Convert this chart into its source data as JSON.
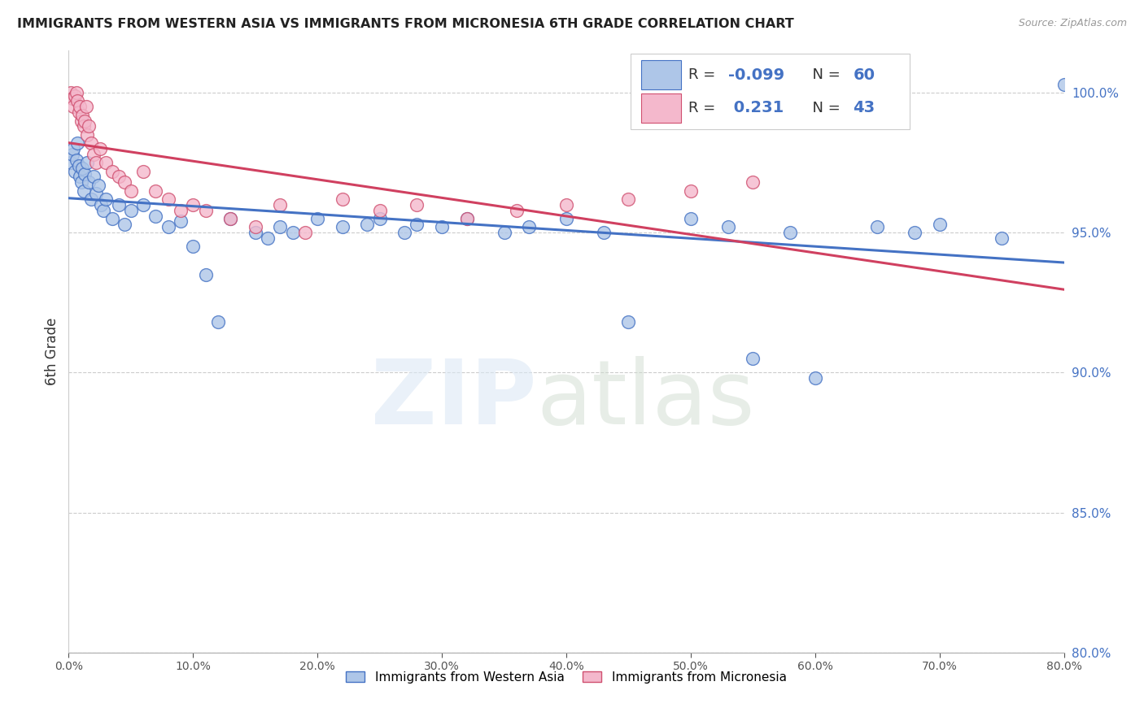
{
  "title": "IMMIGRANTS FROM WESTERN ASIA VS IMMIGRANTS FROM MICRONESIA 6TH GRADE CORRELATION CHART",
  "source": "Source: ZipAtlas.com",
  "ylabel_left": "6th Grade",
  "legend_label1": "Immigrants from Western Asia",
  "legend_label2": "Immigrants from Micronesia",
  "R1": -0.099,
  "N1": 60,
  "R2": 0.231,
  "N2": 43,
  "color1_fill": "#aec6e8",
  "color1_edge": "#4472c4",
  "color2_fill": "#f4b8cc",
  "color2_edge": "#d05070",
  "color1_line": "#4472c4",
  "color2_line": "#d04060",
  "xlim": [
    0.0,
    80.0
  ],
  "ylim": [
    80.0,
    101.5
  ],
  "yticks_right": [
    80.0,
    85.0,
    90.0,
    95.0,
    100.0
  ],
  "xticks": [
    0.0,
    10.0,
    20.0,
    30.0,
    40.0,
    50.0,
    60.0,
    70.0,
    80.0
  ],
  "blue_scatter_x": [
    0.2,
    0.3,
    0.4,
    0.5,
    0.6,
    0.7,
    0.8,
    0.9,
    1.0,
    1.1,
    1.2,
    1.3,
    1.5,
    1.6,
    1.8,
    2.0,
    2.2,
    2.4,
    2.6,
    2.8,
    3.0,
    3.5,
    4.0,
    4.5,
    5.0,
    6.0,
    7.0,
    8.0,
    9.0,
    10.0,
    11.0,
    12.0,
    13.0,
    15.0,
    16.0,
    17.0,
    18.0,
    20.0,
    22.0,
    24.0,
    25.0,
    27.0,
    28.0,
    30.0,
    32.0,
    35.0,
    37.0,
    40.0,
    43.0,
    45.0,
    50.0,
    53.0,
    55.0,
    58.0,
    60.0,
    65.0,
    68.0,
    70.0,
    75.0,
    80.0
  ],
  "blue_scatter_y": [
    97.5,
    97.8,
    98.0,
    97.2,
    97.6,
    98.2,
    97.4,
    97.0,
    96.8,
    97.3,
    96.5,
    97.1,
    97.5,
    96.8,
    96.2,
    97.0,
    96.4,
    96.7,
    96.0,
    95.8,
    96.2,
    95.5,
    96.0,
    95.3,
    95.8,
    96.0,
    95.6,
    95.2,
    95.4,
    94.5,
    93.5,
    91.8,
    95.5,
    95.0,
    94.8,
    95.2,
    95.0,
    95.5,
    95.2,
    95.3,
    95.5,
    95.0,
    95.3,
    95.2,
    95.5,
    95.0,
    95.2,
    95.5,
    95.0,
    91.8,
    95.5,
    95.2,
    90.5,
    95.0,
    89.8,
    95.2,
    95.0,
    95.3,
    94.8,
    100.3
  ],
  "pink_scatter_x": [
    0.2,
    0.3,
    0.4,
    0.5,
    0.6,
    0.7,
    0.8,
    0.9,
    1.0,
    1.1,
    1.2,
    1.3,
    1.4,
    1.5,
    1.6,
    1.8,
    2.0,
    2.2,
    2.5,
    3.0,
    3.5,
    4.0,
    4.5,
    5.0,
    6.0,
    7.0,
    8.0,
    9.0,
    10.0,
    11.0,
    13.0,
    15.0,
    17.0,
    19.0,
    22.0,
    25.0,
    28.0,
    32.0,
    36.0,
    40.0,
    45.0,
    50.0,
    55.0
  ],
  "pink_scatter_y": [
    100.0,
    99.8,
    99.5,
    99.9,
    100.0,
    99.7,
    99.3,
    99.5,
    99.0,
    99.2,
    98.8,
    99.0,
    99.5,
    98.5,
    98.8,
    98.2,
    97.8,
    97.5,
    98.0,
    97.5,
    97.2,
    97.0,
    96.8,
    96.5,
    97.2,
    96.5,
    96.2,
    95.8,
    96.0,
    95.8,
    95.5,
    95.2,
    96.0,
    95.0,
    96.2,
    95.8,
    96.0,
    95.5,
    95.8,
    96.0,
    96.2,
    96.5,
    96.8
  ]
}
